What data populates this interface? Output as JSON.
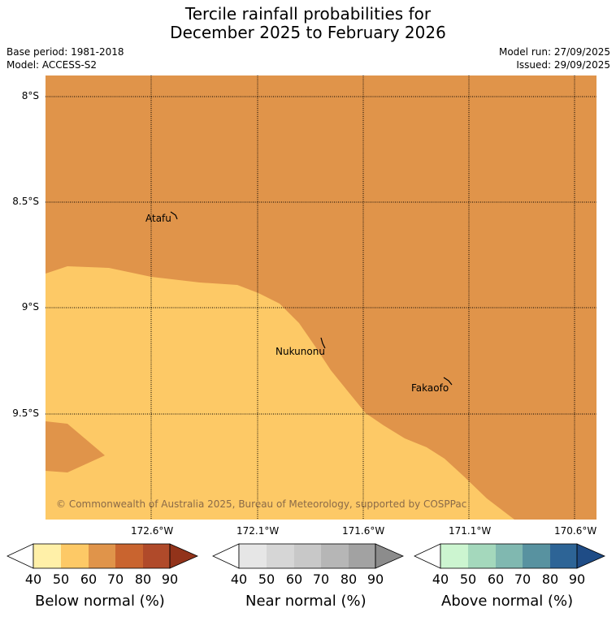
{
  "header": {
    "title_line1": "Tercile rainfall probabilities for",
    "title_line2": "December 2025 to February 2026",
    "base_period": "Base period: 1981-2018",
    "model": "Model: ACCESS-S2",
    "model_run": "Model run: 27/09/2025",
    "issued": "Issued: 29/09/2025"
  },
  "map": {
    "lat_labels": [
      "8°S",
      "8.5°S",
      "9°S",
      "9.5°S"
    ],
    "lon_labels_row1": [
      "172.6°W",
      "171.6°W"
    ],
    "lon_labels_row2": [
      "172.1°W",
      "171.1°W",
      "170.6°W"
    ],
    "places": [
      "Atafu",
      "Nukunonu",
      "Fakaofo"
    ],
    "copyright": "© Commonwealth of Australia 2025, Bureau of Meteorology, supported by COSPPac",
    "colors": {
      "below_40": "#fdc966",
      "below_50": "#e0944a",
      "grid": "#000000"
    }
  },
  "legends": [
    {
      "title": "Below normal (%)",
      "ticks": [
        "40",
        "50",
        "60",
        "70",
        "80",
        "90"
      ],
      "colors": [
        "#ffffff",
        "#fff0a8",
        "#fdc966",
        "#e0944a",
        "#c9642f",
        "#b04a2a",
        "#92331a"
      ]
    },
    {
      "title": "Near normal (%)",
      "ticks": [
        "40",
        "50",
        "60",
        "70",
        "80",
        "90"
      ],
      "colors": [
        "#ffffff",
        "#e6e6e6",
        "#d6d6d6",
        "#c8c8c8",
        "#b6b6b6",
        "#a2a2a2",
        "#8c8c8c"
      ]
    },
    {
      "title": "Above normal (%)",
      "ticks": [
        "40",
        "50",
        "60",
        "70",
        "80",
        "90"
      ],
      "colors": [
        "#ffffff",
        "#ccf5d0",
        "#a4d8bc",
        "#80b8b0",
        "#5892a0",
        "#2d6496",
        "#1f4c86"
      ]
    }
  ]
}
